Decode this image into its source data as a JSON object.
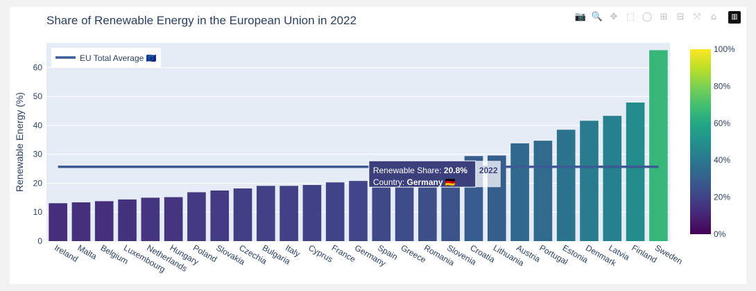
{
  "modebar": {
    "buttons": [
      {
        "name": "camera-icon",
        "glyph": "📷"
      },
      {
        "name": "zoom-icon",
        "glyph": "🔍",
        "active": true
      },
      {
        "name": "pan-icon",
        "glyph": "✥"
      },
      {
        "name": "box-select-icon",
        "glyph": "⬚"
      },
      {
        "name": "lasso-select-icon",
        "glyph": "◯"
      },
      {
        "name": "zoom-in-icon",
        "glyph": "⊞"
      },
      {
        "name": "zoom-out-icon",
        "glyph": "⊟"
      },
      {
        "name": "autoscale-icon",
        "glyph": "⤧"
      },
      {
        "name": "reset-axes-icon",
        "glyph": "⌂"
      },
      {
        "name": "plotly-logo-icon",
        "glyph": "▥"
      }
    ]
  },
  "chart_data": {
    "type": "bar",
    "title": "Share of Renewable Energy in the European Union in 2022",
    "xlabel": "",
    "ylabel": "Renewable Energy (%)",
    "ylim": [
      0,
      68.5
    ],
    "yticks": [
      0,
      10,
      20,
      30,
      40,
      50,
      60
    ],
    "grid": true,
    "categories": [
      "Ireland",
      "Malta",
      "Belgium",
      "Luxembourg",
      "Netherlands",
      "Hungary",
      "Poland",
      "Slovakia",
      "Czechia",
      "Bulgaria",
      "Italy",
      "Cyprus",
      "France",
      "Germany",
      "Spain",
      "Greece",
      "Romania",
      "Slovenia",
      "Croatia",
      "Lithuania",
      "Austria",
      "Portugal",
      "Estonia",
      "Denmark",
      "Latvia",
      "Finland",
      "Sweden"
    ],
    "values": [
      13.1,
      13.4,
      13.8,
      14.4,
      15.0,
      15.2,
      16.9,
      17.5,
      18.2,
      19.1,
      19.1,
      19.4,
      20.3,
      20.8,
      22.1,
      22.7,
      24.1,
      25.0,
      29.4,
      29.6,
      33.8,
      34.7,
      38.5,
      41.6,
      43.3,
      47.9,
      66.0
    ],
    "colorscale": "viridis",
    "colorbar": {
      "range": [
        0,
        100
      ],
      "ticks": [
        "0%",
        "20%",
        "40%",
        "60%",
        "80%",
        "100%"
      ]
    },
    "average_line": {
      "name": "EU Total Average 🇪🇺",
      "value": 25.7,
      "color": "#3d5a96"
    },
    "legend_position": "top-left",
    "hover": {
      "label1": "Renewable Share: ",
      "value1": "20.8%",
      "label2": "Country: ",
      "value2": "Germany 🇩🇪",
      "extra": "2022"
    }
  }
}
